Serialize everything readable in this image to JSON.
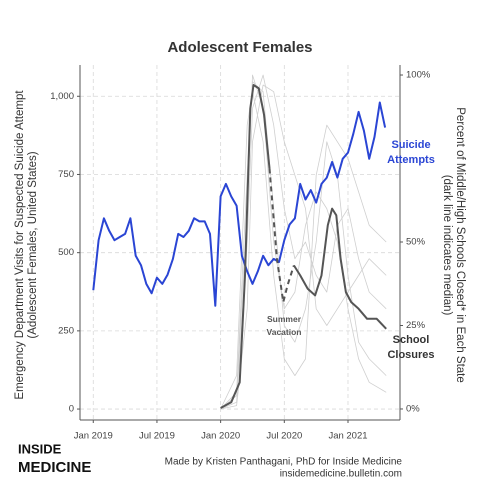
{
  "chart_data": {
    "type": "line",
    "title": "Adolescent Females",
    "ylabel": [
      "Emergency Department Visits for Suspected Suicide Attempt",
      "(Adolescent Females, United States)"
    ],
    "y2label": [
      "Percent of Middle/High Schools Closed* in Each State",
      "(dark line indicates median)"
    ],
    "xlim": [
      -1.25,
      28.9
    ],
    "xticks": [
      {
        "value": 0,
        "label": "Jan 2019"
      },
      {
        "value": 6,
        "label": "Jul 2019"
      },
      {
        "value": 12,
        "label": "Jan 2020"
      },
      {
        "value": 18,
        "label": "Jul 2020"
      },
      {
        "value": 24,
        "label": "Jan 2021"
      }
    ],
    "ylim": [
      -35,
      1100
    ],
    "yticks": [
      0,
      250,
      500,
      750,
      {
        "value": 1000,
        "label": "1,000"
      }
    ],
    "y2lim": [
      -3.3,
      103
    ],
    "y2ticks": [
      {
        "value": 0,
        "label": "0%"
      },
      {
        "value": 25,
        "label": "25%"
      },
      {
        "value": 50,
        "label": "50%"
      },
      {
        "value": 100,
        "label": "100%"
      }
    ],
    "grid": true,
    "series": [
      {
        "color": "#cfcfcf",
        "axis": "y2",
        "x": [
          12,
          13.5,
          14.5,
          15,
          16,
          17,
          18,
          19,
          20,
          21,
          22,
          23,
          24,
          25,
          26,
          27.6
        ],
        "values": [
          0,
          5,
          70,
          98,
          95,
          60,
          25,
          20,
          30,
          50,
          80,
          70,
          40,
          20,
          15,
          10
        ]
      },
      {
        "color": "#cfcfcf",
        "axis": "y2",
        "x": [
          12,
          13.5,
          14.5,
          15,
          16,
          17,
          18,
          19,
          20,
          21,
          22,
          23,
          24,
          25,
          26,
          27.6
        ],
        "values": [
          0,
          2,
          50,
          90,
          100,
          85,
          60,
          45,
          50,
          40,
          35,
          55,
          60,
          45,
          35,
          30
        ]
      },
      {
        "color": "#cfcfcf",
        "axis": "y2",
        "x": [
          12,
          13.5,
          14.5,
          15,
          16,
          17,
          18,
          19,
          20,
          21,
          22,
          23,
          24,
          25,
          26,
          27.6
        ],
        "values": [
          0,
          10,
          85,
          95,
          80,
          40,
          15,
          10,
          15,
          70,
          85,
          80,
          75,
          65,
          55,
          50
        ]
      },
      {
        "color": "#cfcfcf",
        "axis": "y2",
        "x": [
          12,
          13.5,
          14.5,
          15,
          16,
          17,
          18,
          19,
          20,
          21,
          22,
          23,
          24,
          25,
          26,
          27.6
        ],
        "values": [
          0,
          1,
          30,
          80,
          97,
          95,
          80,
          70,
          60,
          30,
          25,
          30,
          35,
          40,
          45,
          40
        ]
      },
      {
        "color": "#cfcfcf",
        "axis": "y2",
        "x": [
          12,
          13.5,
          14.5,
          15,
          16,
          17,
          18,
          19,
          20,
          21,
          22,
          23,
          24,
          25,
          26,
          27.6
        ],
        "values": [
          0,
          4,
          60,
          100,
          90,
          50,
          30,
          35,
          55,
          65,
          60,
          50,
          30,
          15,
          8,
          5
        ]
      },
      {
        "name": "Suicide Attempts",
        "color": "#2a45d4",
        "x": [
          0,
          0.5,
          1,
          1.5,
          2,
          2.5,
          3,
          3.5,
          4,
          4.5,
          5,
          5.5,
          6,
          6.5,
          7,
          7.5,
          8,
          8.5,
          9,
          9.5,
          10,
          10.5,
          11,
          11.5,
          12,
          12.5,
          13,
          13.5,
          14,
          14.5,
          15,
          15.5,
          16,
          16.5,
          17,
          17.5,
          18,
          18.5,
          19,
          19.5,
          20,
          20.5,
          21,
          21.5,
          22,
          22.5,
          23,
          23.5,
          24,
          24.5,
          25,
          25.5,
          26,
          26.5,
          27,
          27.5
        ],
        "values": [
          380,
          540,
          610,
          570,
          540,
          550,
          560,
          610,
          490,
          460,
          400,
          370,
          420,
          400,
          430,
          480,
          560,
          550,
          570,
          610,
          600,
          600,
          560,
          330,
          680,
          720,
          680,
          650,
          490,
          440,
          400,
          440,
          490,
          460,
          480,
          470,
          540,
          590,
          610,
          720,
          670,
          700,
          660,
          720,
          740,
          790,
          740,
          800,
          820,
          880,
          950,
          890,
          800,
          870,
          980,
          900
        ]
      },
      {
        "color": "#555555",
        "axis": "y2",
        "dash": true,
        "x": [
          16.6,
          17.3,
          17.9,
          18.3,
          18.9
        ],
        "values": [
          72,
          45,
          32,
          37,
          43
        ]
      },
      {
        "color": "#555555",
        "axis": "y2",
        "x": [
          12,
          13,
          13.8,
          14.3,
          14.8,
          15.1,
          15.6,
          16.1,
          16.6,
          null,
          18.9,
          19.5,
          20.2,
          20.9,
          21.5,
          22.1,
          22.5,
          22.9,
          23.3,
          23.8,
          24.3,
          25,
          25.8,
          26.7,
          27.6
        ],
        "values": [
          0.3,
          2,
          8,
          40,
          90,
          97,
          96,
          88,
          72,
          null,
          43,
          40,
          36,
          34,
          40,
          55,
          60,
          58,
          45,
          35,
          32,
          30,
          27,
          27,
          24
        ]
      }
    ],
    "annotations": [
      "Summer Vacation",
      "School Closures"
    ],
    "footer": [
      "Made by Kristen Panthagani, PhD for Inside Medicine",
      "insidemedicine.bulletin.com"
    ],
    "logo": [
      "INSIDE",
      "MEDICINE"
    ]
  }
}
